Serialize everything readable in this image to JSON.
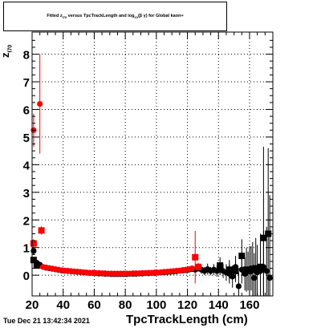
{
  "canvas": {
    "title_main": "Fitted  z",
    "title_sub1": "I70",
    "title_mid": "  versus TpcTrackLength and log",
    "title_sub2": "10",
    "title_end": "(β γ) for Global kaon+",
    "timestamp": "Tue Dec 21 13:42:34 2021"
  },
  "chart_data": {
    "type": "scatter",
    "title": "Fitted z_I70 versus TpcTrackLength and log10(βγ) for Global kaon+",
    "xlabel": "TpcTrackLength (cm)",
    "ylabel_main": "z",
    "ylabel_sub": "I70",
    "xlim": [
      20,
      175
    ],
    "ylim": [
      -0.75,
      8.8
    ],
    "xticks": [
      20,
      40,
      60,
      80,
      100,
      120,
      140,
      160
    ],
    "yticks": [
      0,
      1,
      2,
      3,
      4,
      5,
      6,
      7,
      8
    ],
    "grid": true,
    "colors": {
      "black": "#000000",
      "red": "#ff0000"
    },
    "series": [
      {
        "marker": "circle",
        "color": "#000000",
        "points": [
          [
            21,
            0.88,
            0.15
          ],
          [
            23,
            0.45,
            0.08
          ],
          [
            25,
            0.38,
            0.06
          ],
          [
            27,
            0.3,
            0.04
          ],
          [
            29,
            0.27,
            0.04
          ],
          [
            31,
            0.25,
            0.03
          ],
          [
            33,
            0.23,
            0.03
          ],
          [
            35,
            0.21,
            0.03
          ],
          [
            37,
            0.19,
            0.03
          ],
          [
            39,
            0.17,
            0.03
          ],
          [
            41,
            0.16,
            0.03
          ],
          [
            43,
            0.15,
            0.02
          ],
          [
            45,
            0.14,
            0.02
          ],
          [
            47,
            0.13,
            0.02
          ],
          [
            49,
            0.12,
            0.02
          ],
          [
            51,
            0.11,
            0.02
          ],
          [
            53,
            0.1,
            0.02
          ],
          [
            55,
            0.09,
            0.02
          ],
          [
            57,
            0.08,
            0.02
          ],
          [
            59,
            0.08,
            0.02
          ],
          [
            61,
            0.07,
            0.02
          ],
          [
            63,
            0.06,
            0.02
          ],
          [
            65,
            0.06,
            0.02
          ],
          [
            67,
            0.05,
            0.02
          ],
          [
            69,
            0.05,
            0.02
          ],
          [
            71,
            0.04,
            0.02
          ],
          [
            73,
            0.04,
            0.02
          ],
          [
            75,
            0.04,
            0.02
          ],
          [
            77,
            0.04,
            0.02
          ],
          [
            79,
            0.04,
            0.02
          ],
          [
            81,
            0.04,
            0.02
          ],
          [
            83,
            0.05,
            0.02
          ],
          [
            85,
            0.05,
            0.02
          ],
          [
            87,
            0.05,
            0.02
          ],
          [
            89,
            0.06,
            0.02
          ],
          [
            91,
            0.06,
            0.02
          ],
          [
            93,
            0.07,
            0.02
          ],
          [
            95,
            0.07,
            0.02
          ],
          [
            97,
            0.08,
            0.02
          ],
          [
            99,
            0.08,
            0.02
          ],
          [
            101,
            0.09,
            0.02
          ],
          [
            103,
            0.1,
            0.02
          ],
          [
            105,
            0.1,
            0.02
          ],
          [
            107,
            0.11,
            0.03
          ],
          [
            109,
            0.12,
            0.03
          ],
          [
            111,
            0.13,
            0.03
          ],
          [
            113,
            0.14,
            0.03
          ],
          [
            115,
            0.16,
            0.03
          ],
          [
            117,
            0.17,
            0.04
          ],
          [
            119,
            0.18,
            0.05
          ],
          [
            121,
            0.2,
            0.06
          ],
          [
            123,
            0.22,
            0.08
          ],
          [
            125,
            0.2,
            0.1
          ],
          [
            127,
            0.25,
            0.12
          ],
          [
            129,
            0.2,
            0.15
          ],
          [
            131,
            0.15,
            0.15
          ],
          [
            133,
            0.22,
            0.2
          ],
          [
            135,
            0.15,
            0.15
          ],
          [
            137,
            0.2,
            0.2
          ],
          [
            139,
            0.15,
            0.2
          ],
          [
            141,
            0.2,
            0.2
          ],
          [
            143,
            0.15,
            0.25
          ],
          [
            145,
            0.1,
            0.3
          ],
          [
            147,
            0.05,
            0.35
          ],
          [
            149,
            -0.05,
            0.4
          ],
          [
            151,
            0.3,
            0.4
          ],
          [
            153,
            -0.4,
            0.5
          ],
          [
            155,
            0.2,
            0.5
          ],
          [
            157,
            0.05,
            0.6
          ],
          [
            159,
            0.15,
            0.7
          ],
          [
            161,
            0.25,
            0.8
          ],
          [
            163,
            -0.1,
            0.9
          ],
          [
            165,
            0.1,
            1.0
          ],
          [
            167,
            0.15,
            1.1
          ],
          [
            169,
            0.3,
            1.3
          ],
          [
            171,
            0.15,
            1.6
          ],
          [
            173,
            -0.1,
            3.0
          ]
        ]
      },
      {
        "marker": "square",
        "color": "#000000",
        "points": [
          [
            21,
            0.55,
            0.1
          ],
          [
            23,
            0.35,
            0.08
          ],
          [
            141,
            0.35,
            0.3
          ],
          [
            147,
            0.2,
            0.35
          ],
          [
            151,
            0.15,
            0.4
          ],
          [
            155,
            0.7,
            0.6
          ],
          [
            158,
            0.2,
            0.8
          ],
          [
            160,
            0.15,
            0.9
          ],
          [
            162,
            0.2,
            1.0
          ],
          [
            164,
            0.25,
            1.1
          ],
          [
            167,
            0.3,
            1.2
          ],
          [
            169,
            1.35,
            3.3
          ],
          [
            172,
            1.5,
            3.1
          ]
        ]
      },
      {
        "marker": "circle",
        "color": "#ff0000",
        "points": [
          [
            21,
            5.25,
            0.6
          ],
          [
            25,
            6.2,
            1.8
          ],
          [
            27,
            0.3,
            0.05
          ],
          [
            29,
            0.28,
            0.04
          ],
          [
            31,
            0.26,
            0.04
          ],
          [
            33,
            0.24,
            0.03
          ],
          [
            35,
            0.22,
            0.03
          ],
          [
            37,
            0.2,
            0.03
          ],
          [
            39,
            0.18,
            0.03
          ],
          [
            41,
            0.17,
            0.03
          ],
          [
            43,
            0.16,
            0.03
          ],
          [
            45,
            0.15,
            0.02
          ],
          [
            47,
            0.14,
            0.02
          ],
          [
            49,
            0.13,
            0.02
          ],
          [
            51,
            0.12,
            0.02
          ],
          [
            53,
            0.11,
            0.02
          ],
          [
            55,
            0.1,
            0.02
          ],
          [
            57,
            0.09,
            0.02
          ],
          [
            59,
            0.09,
            0.02
          ],
          [
            61,
            0.08,
            0.02
          ],
          [
            63,
            0.08,
            0.02
          ],
          [
            65,
            0.07,
            0.02
          ],
          [
            67,
            0.07,
            0.02
          ],
          [
            69,
            0.06,
            0.02
          ],
          [
            71,
            0.06,
            0.02
          ],
          [
            73,
            0.06,
            0.02
          ],
          [
            75,
            0.06,
            0.02
          ],
          [
            77,
            0.06,
            0.02
          ],
          [
            79,
            0.06,
            0.02
          ],
          [
            81,
            0.06,
            0.02
          ],
          [
            83,
            0.06,
            0.02
          ],
          [
            85,
            0.07,
            0.02
          ],
          [
            87,
            0.07,
            0.02
          ],
          [
            89,
            0.07,
            0.02
          ],
          [
            91,
            0.08,
            0.02
          ],
          [
            93,
            0.08,
            0.02
          ],
          [
            95,
            0.09,
            0.02
          ],
          [
            97,
            0.09,
            0.02
          ],
          [
            99,
            0.1,
            0.02
          ],
          [
            101,
            0.1,
            0.02
          ],
          [
            103,
            0.11,
            0.02
          ],
          [
            105,
            0.12,
            0.02
          ],
          [
            107,
            0.13,
            0.03
          ],
          [
            109,
            0.14,
            0.03
          ],
          [
            111,
            0.15,
            0.03
          ],
          [
            113,
            0.16,
            0.03
          ],
          [
            115,
            0.17,
            0.03
          ],
          [
            117,
            0.19,
            0.04
          ],
          [
            119,
            0.2,
            0.05
          ],
          [
            121,
            0.22,
            0.07
          ],
          [
            123,
            0.25,
            0.1
          ]
        ]
      },
      {
        "marker": "square",
        "color": "#ff0000",
        "points": [
          [
            21,
            1.15,
            0.15
          ],
          [
            26,
            1.62,
            0.15
          ],
          [
            125,
            0.65,
            0.95
          ],
          [
            127,
            0.3,
            0.15
          ]
        ]
      }
    ]
  }
}
